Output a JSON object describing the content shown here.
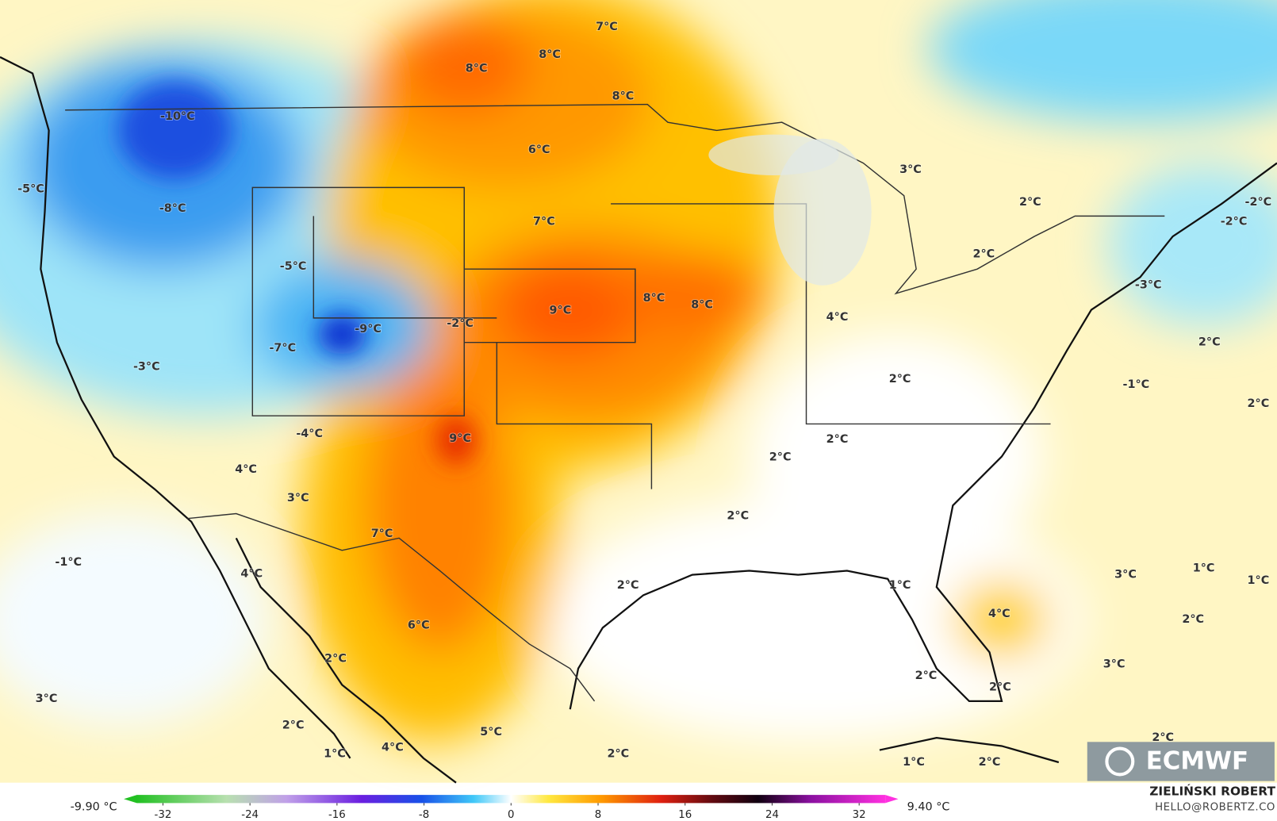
{
  "map": {
    "labels": [
      "8°C",
      "8°C",
      "7°C",
      "8°C",
      "-10°C",
      "-5°C",
      "-8°C",
      "6°C",
      "3°C",
      "2°C",
      "-2°C",
      "-2°C",
      "7°C",
      "-5°C",
      "2°C",
      "-3°C",
      "9°C",
      "8°C",
      "8°C",
      "4°C",
      "-9°C",
      "-2°C",
      "-7°C",
      "-3°C",
      "2°C",
      "2°C",
      "-1°C",
      "2°C",
      "-4°C",
      "9°C",
      "2°C",
      "2°C",
      "4°C",
      "3°C",
      "2°C",
      "7°C",
      "-1°C",
      "4°C",
      "1°C",
      "3°C",
      "1°C",
      "2°C",
      "1°C",
      "4°C",
      "2°C",
      "6°C",
      "2°C",
      "3°C",
      "2°C",
      "2°C",
      "3°C",
      "2°C",
      "5°C",
      "2°C",
      "4°C",
      "1°C",
      "2°C",
      "1°C",
      "2°C"
    ]
  },
  "colorbar": {
    "lim": [
      -35,
      35
    ],
    "ticks": [
      -32,
      -24,
      -16,
      -8,
      0,
      8,
      16,
      24,
      32
    ],
    "min_label": "-9.90 °C",
    "max_label": "9.40 °C"
  },
  "logo": "ECMWF",
  "credit": {
    "name": "ZIELIŃSKI ROBERT",
    "contact": "HELLO@ROBERTZ.CO"
  }
}
